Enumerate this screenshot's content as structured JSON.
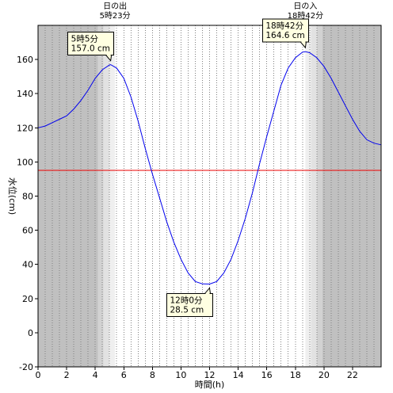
{
  "chart_data": {
    "type": "line",
    "xlabel": "時間(h)",
    "ylabel": "水位(cm)",
    "xlim": [
      0,
      24
    ],
    "ylim": [
      -20,
      180
    ],
    "x_ticks": [
      0,
      2,
      4,
      6,
      8,
      10,
      12,
      14,
      16,
      18,
      20,
      22
    ],
    "y_ticks": [
      -20,
      0,
      20,
      40,
      60,
      80,
      100,
      120,
      140,
      160
    ],
    "grid": "dotted vertical lines every 0.5 h",
    "series": [
      {
        "color": "#0000ee",
        "x": [
          0,
          0.5,
          1,
          1.5,
          2,
          2.5,
          3,
          3.5,
          4,
          4.5,
          5,
          5.08,
          5.5,
          6,
          6.5,
          7,
          7.5,
          8,
          8.5,
          9,
          9.5,
          10,
          10.5,
          11,
          11.5,
          12,
          12.5,
          13,
          13.5,
          14,
          14.5,
          15,
          15.5,
          16,
          16.5,
          17,
          17.5,
          18,
          18.5,
          18.7,
          19,
          19.5,
          20,
          20.5,
          21,
          21.5,
          22,
          22.5,
          23,
          23.5,
          24
        ],
        "values": [
          120,
          121,
          123,
          125,
          127,
          131,
          136,
          142,
          149,
          154,
          156.8,
          157.0,
          155,
          149,
          138,
          124,
          108,
          93,
          79,
          65,
          53,
          43,
          35,
          30,
          28.6,
          28.5,
          30,
          35,
          43,
          54,
          67,
          82,
          99,
          115,
          130,
          145,
          155,
          161,
          164.3,
          164.6,
          164,
          161,
          156,
          149,
          141,
          133,
          125,
          118,
          113,
          111,
          110
        ]
      }
    ],
    "reference_line": {
      "value": 95,
      "color": "#ee0000"
    },
    "daylight": {
      "sunrise_label": "日の出",
      "sunrise_time": "5時23分",
      "sunrise_hour": 5.383,
      "sunset_label": "日の入",
      "sunset_time": "18時42分",
      "sunset_hour": 18.7
    },
    "annotations": [
      {
        "line1": "5時5分",
        "line2": "157.0 cm",
        "x": 5.08,
        "y": 157.0,
        "position": "above"
      },
      {
        "line1": "12時0分",
        "line2": "28.5 cm",
        "x": 12.0,
        "y": 28.5,
        "position": "below"
      },
      {
        "line1": "18時42分",
        "line2": "164.6 cm",
        "x": 18.7,
        "y": 164.6,
        "position": "above"
      }
    ],
    "colors": {
      "night": "#c0c0c0",
      "twilight_outer": "#d2d2d2",
      "twilight_mid": "#e2e2e2",
      "twilight_inner": "#efefef",
      "day": "#ffffff",
      "callout_fill": "#ffffe1"
    }
  }
}
